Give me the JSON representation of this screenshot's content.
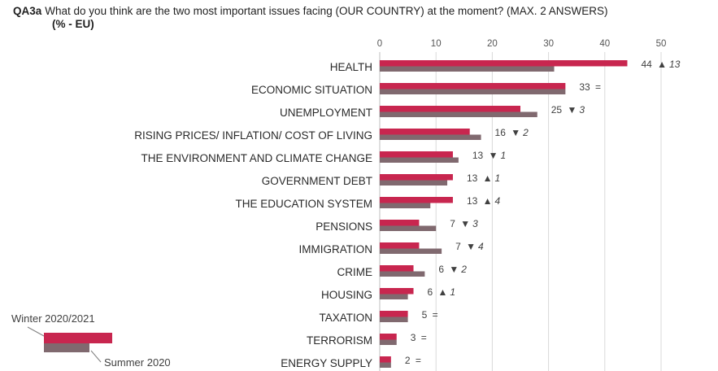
{
  "header": {
    "code": "QA3a",
    "question": "What do you think are the two most important issues facing (OUR COUNTRY) at the moment? (MAX. 2 ANSWERS)",
    "subtitle": "(% - EU)"
  },
  "colors": {
    "winter": "#c8264f",
    "summer": "#80696f",
    "grid": "#d9d9d9",
    "axis": "#bfbfbf"
  },
  "chart_data": {
    "type": "bar",
    "orientation": "horizontal",
    "xlim": [
      0,
      50
    ],
    "ticks": [
      0,
      10,
      20,
      30,
      40,
      50
    ],
    "categories": [
      "HEALTH",
      "ECONOMIC SITUATION",
      "UNEMPLOYMENT",
      "RISING PRICES/ INFLATION/ COST OF LIVING",
      "THE ENVIRONMENT AND CLIMATE CHANGE",
      "GOVERNMENT DEBT",
      "THE EDUCATION SYSTEM",
      "PENSIONS",
      "IMMIGRATION",
      "CRIME",
      "HOUSING",
      "TAXATION",
      "TERRORISM",
      "ENERGY SUPPLY"
    ],
    "series": [
      {
        "name": "Winter 2020/2021",
        "values": [
          44,
          33,
          25,
          16,
          13,
          13,
          13,
          7,
          7,
          6,
          6,
          5,
          3,
          2
        ]
      },
      {
        "name": "Summer 2020",
        "values": [
          31,
          33,
          28,
          18,
          14,
          12,
          9,
          10,
          11,
          8,
          5,
          5,
          3,
          2
        ]
      }
    ],
    "labels": [
      {
        "value": "44",
        "symbol": "▲",
        "change": "13"
      },
      {
        "value": "33",
        "symbol": "=",
        "change": ""
      },
      {
        "value": "25",
        "symbol": "▼",
        "change": "3"
      },
      {
        "value": "16",
        "symbol": "▼",
        "change": "2"
      },
      {
        "value": "13",
        "symbol": "▼",
        "change": "1"
      },
      {
        "value": "13",
        "symbol": "▲",
        "change": "1"
      },
      {
        "value": "13",
        "symbol": "▲",
        "change": "4"
      },
      {
        "value": "7",
        "symbol": "▼",
        "change": "3"
      },
      {
        "value": "7",
        "symbol": "▼",
        "change": "4"
      },
      {
        "value": "6",
        "symbol": "▼",
        "change": "2"
      },
      {
        "value": "6",
        "symbol": "▲",
        "change": "1"
      },
      {
        "value": "5",
        "symbol": "=",
        "change": ""
      },
      {
        "value": "3",
        "symbol": "=",
        "change": ""
      },
      {
        "value": "2",
        "symbol": "=",
        "change": ""
      }
    ],
    "grid": true,
    "legend": "bottom-left"
  }
}
